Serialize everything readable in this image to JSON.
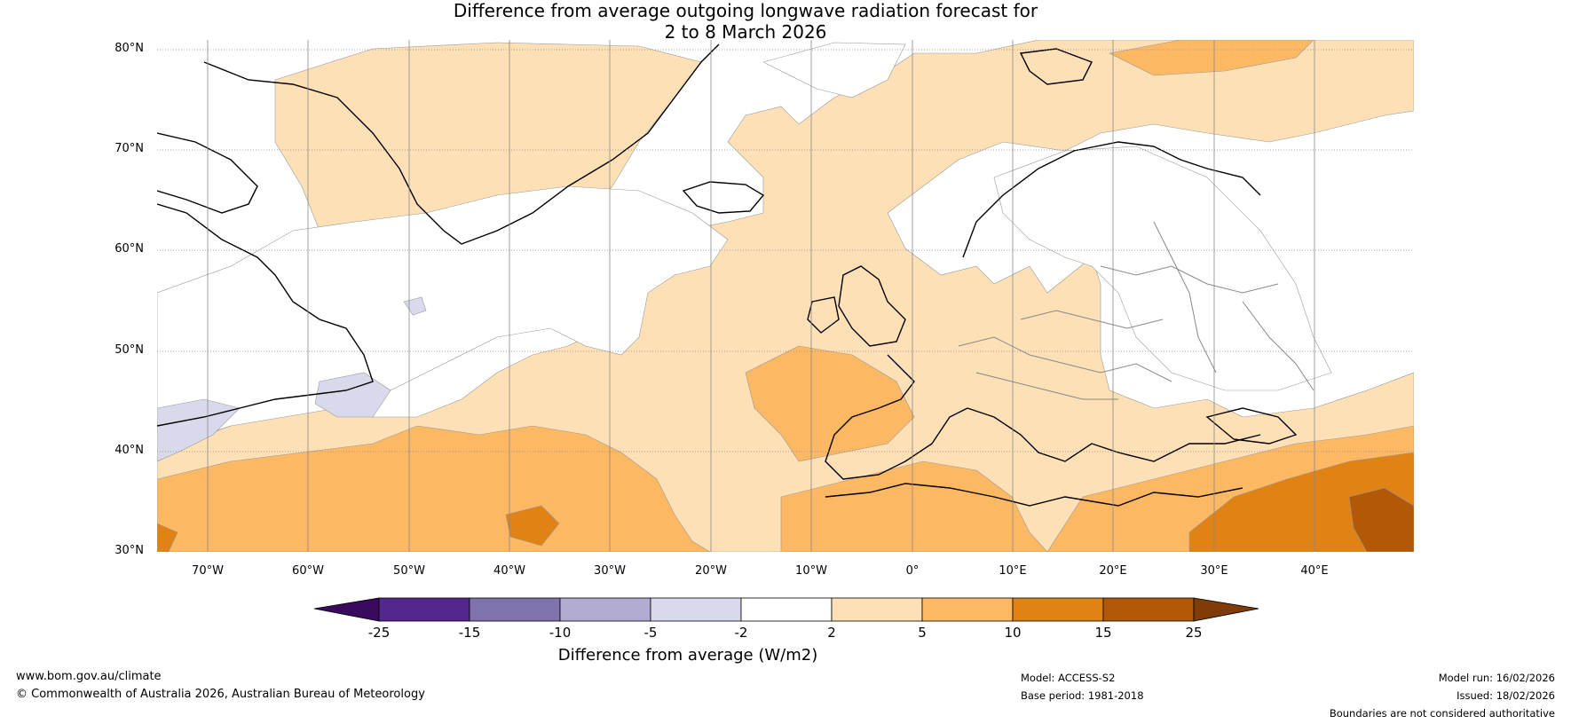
{
  "header": {
    "title_line1": "Difference from average outgoing longwave radiation forecast for",
    "title_line2": "2 to 8 March 2026"
  },
  "map": {
    "lat_labels": [
      "80°N",
      "70°N",
      "60°N",
      "50°N",
      "40°N",
      "30°N"
    ],
    "lon_labels": [
      "70°W",
      "60°W",
      "50°W",
      "40°W",
      "30°W",
      "20°W",
      "10°W",
      "0°",
      "10°E",
      "20°E",
      "30°E",
      "40°E"
    ]
  },
  "colorbar": {
    "ticks": [
      "-25",
      "-15",
      "-10",
      "-5",
      "-2",
      "2",
      "5",
      "10",
      "15",
      "25"
    ],
    "colors": [
      "#3a0a5e",
      "#54278f",
      "#8073ac",
      "#b2abd2",
      "#d8daeb",
      "#ffffff",
      "#fee0b6",
      "#fdb863",
      "#e08214",
      "#b35806",
      "#7f3b08"
    ],
    "label": "Difference from average (W/m2)"
  },
  "footer": {
    "website": "www.bom.gov.au/climate",
    "copyright": "© Commonwealth of Australia 2026, Australian Bureau of Meteorology",
    "model": "Model: ACCESS-S2",
    "base_period": "Base period: 1981-2018",
    "model_run": "Model run: 16/02/2026",
    "issued": "Issued: 18/02/2026",
    "disclaimer": "Boundaries are not considered authoritative"
  }
}
